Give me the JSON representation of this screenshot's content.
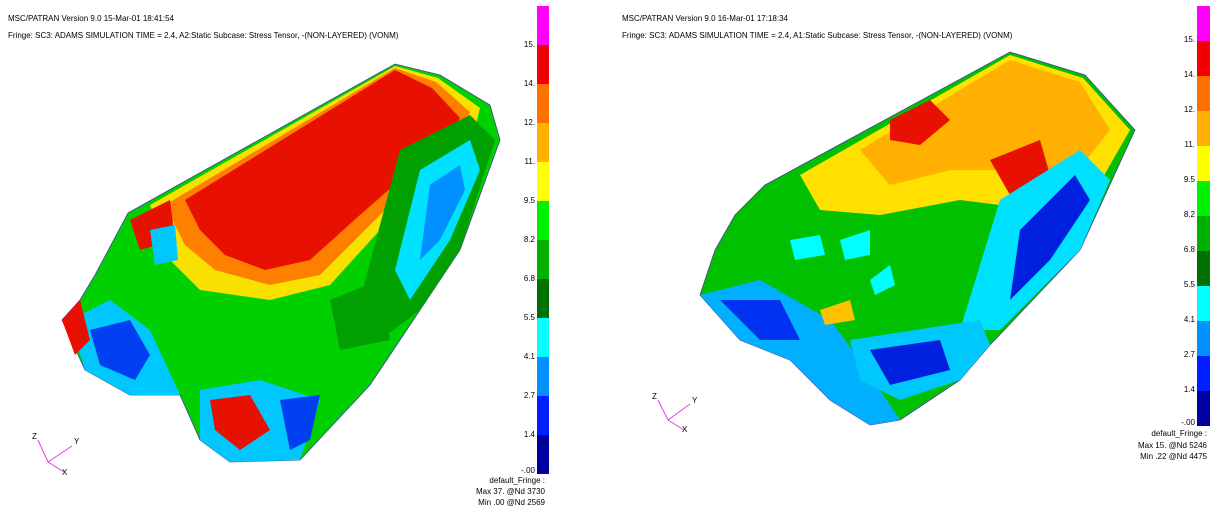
{
  "panels": [
    {
      "header": [
        "MSC/PATRAN Version 9.0 15-Mar-01 18:41:54",
        "Fringe: SC3: ADAMS SIMULATION TIME = 2.4, A2:Static Subcase: Stress Tensor, -(NON-LAYERED) (VONM)"
      ],
      "scale": [
        "15.",
        "14.",
        "12.",
        "11.",
        "9.5",
        "8.2",
        "6.8",
        "5.5",
        "4.1",
        "2.7",
        "1.4",
        "-.00"
      ],
      "footer": [
        "default_Fringe :",
        "Max 37. @Nd 3730",
        "Min .00 @Nd 2569"
      ],
      "triad": [
        "Z",
        "Y",
        "X"
      ]
    },
    {
      "header": [
        "MSC/PATRAN Version 9.0 16-Mar-01 17:18:34",
        "Fringe: SC3: ADAMS SIMULATION TIME = 2.4, A1:Static Subcase: Stress Tensor, -(NON-LAYERED) (VONM)"
      ],
      "scale": [
        "15.",
        "14.",
        "12.",
        "11.",
        "9.5",
        "8.2",
        "6.8",
        "5.5",
        "4.1",
        "2.7",
        "1.4",
        "-.00"
      ],
      "footer": [
        "default_Fringe :",
        "Max 15. @Nd 5246",
        "Min .22 @Nd 4475"
      ],
      "triad": [
        "Z",
        "Y",
        "X"
      ]
    }
  ]
}
